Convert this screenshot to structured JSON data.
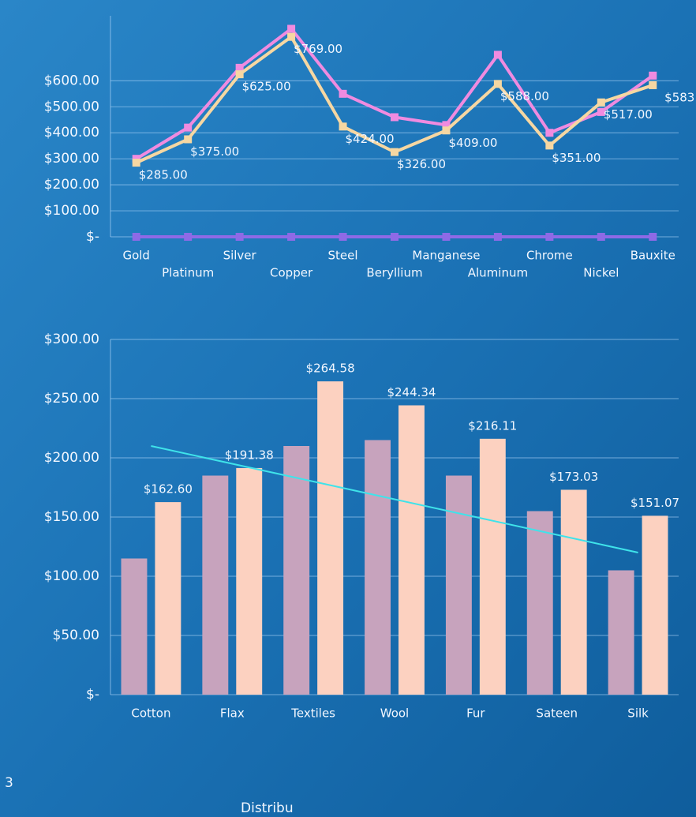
{
  "chart_data": [
    {
      "type": "line",
      "categories": [
        "Gold",
        "Platinum",
        "Silver",
        "Copper",
        "Steel",
        "Beryllium",
        "Manganese",
        "Aluminum",
        "Chrome",
        "Nickel",
        "Bauxite"
      ],
      "series": [
        {
          "color": "#f08be0",
          "values": [
            300,
            420,
            650,
            800,
            550,
            460,
            430,
            700,
            400,
            480,
            620
          ]
        },
        {
          "color": "#f6d7a2",
          "values": [
            285,
            375,
            625,
            769,
            424,
            326,
            409,
            588,
            351,
            517,
            583
          ],
          "value_labels": [
            "$285.00",
            "$375.00",
            "$625.00",
            "$769.00",
            "$424.00",
            "$326.00",
            "$409.00",
            "$588.00",
            "$351.00",
            "$517.00",
            "$583"
          ]
        },
        {
          "color": "#8e6ae6",
          "values": [
            0,
            0,
            0,
            0,
            0,
            0,
            0,
            0,
            0,
            0,
            0
          ]
        }
      ],
      "ylim": [
        0,
        850
      ],
      "yticks": [
        {
          "value": 0,
          "label": "$-"
        },
        {
          "value": 100,
          "label": "$100.00"
        },
        {
          "value": 200,
          "label": "$200.00"
        },
        {
          "value": 300,
          "label": "$300.00"
        },
        {
          "value": 400,
          "label": "$400.00"
        },
        {
          "value": 500,
          "label": "$500.00"
        },
        {
          "value": 600,
          "label": "$600.00"
        }
      ],
      "grid": true
    },
    {
      "type": "bar",
      "categories": [
        "Cotton",
        "Flax",
        "Textiles",
        "Wool",
        "Fur",
        "Sateen",
        "Silk"
      ],
      "series": [
        {
          "color": "#c7a3bd",
          "values": [
            115,
            185,
            210,
            215,
            185,
            155,
            105
          ]
        },
        {
          "color": "#fcd1c0",
          "values": [
            162.6,
            191.38,
            264.58,
            244.34,
            216.11,
            173.03,
            151.07
          ],
          "value_labels": [
            "$162.60",
            "$191.38",
            "$264.58",
            "$244.34",
            "$216.11",
            "$173.03",
            "$151.07"
          ]
        },
        {
          "type": "line",
          "color": "#3fe3ea",
          "values": [
            210,
            195,
            180,
            165,
            150,
            135,
            120
          ]
        }
      ],
      "ylim": [
        0,
        300
      ],
      "yticks": [
        {
          "value": 0,
          "label": "$-"
        },
        {
          "value": 50,
          "label": "$50.00"
        },
        {
          "value": 100,
          "label": "$100.00"
        },
        {
          "value": 150,
          "label": "$150.00"
        },
        {
          "value": 200,
          "label": "$200.00"
        },
        {
          "value": 250,
          "label": "$250.00"
        },
        {
          "value": 300,
          "label": "$300.00"
        }
      ],
      "grid": true
    }
  ],
  "fragments": [
    "3",
    "Distribu"
  ]
}
